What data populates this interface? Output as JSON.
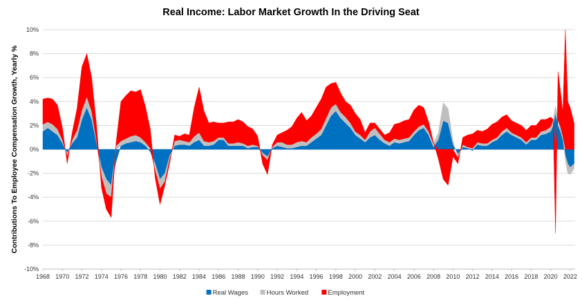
{
  "chart_data": {
    "type": "area",
    "title": "Real Income: Labor Market Growth In the Driving Seat",
    "ylabel": "Contributions To  Employee Compensation Growth, Yearly %",
    "xlabel": "",
    "stacked": true,
    "ylim": [
      -10,
      10
    ],
    "xlim": [
      1968,
      2022.5
    ],
    "yticks": [
      -10,
      -8,
      -6,
      -4,
      -2,
      0,
      2,
      4,
      6,
      8,
      10
    ],
    "ytick_labels": [
      "-10%",
      "-8%",
      "-6%",
      "-4%",
      "-2%",
      "0%",
      "2%",
      "4%",
      "6%",
      "8%",
      "10%"
    ],
    "xticks": [
      1968,
      1970,
      1972,
      1974,
      1976,
      1978,
      1980,
      1982,
      1984,
      1986,
      1988,
      1990,
      1992,
      1994,
      1996,
      1998,
      2000,
      2002,
      2004,
      2006,
      2008,
      2010,
      2012,
      2014,
      2016,
      2018,
      2020,
      2022
    ],
    "xtick_labels": [
      "1968",
      "1970",
      "1972",
      "1974",
      "1976",
      "1978",
      "1980",
      "1982",
      "1984",
      "1986",
      "1988",
      "1990",
      "1992",
      "1994",
      "1996",
      "1998",
      "2000",
      "2002",
      "2004",
      "2006",
      "2008",
      "2010",
      "2012",
      "2014",
      "2016",
      "2018",
      "2020",
      "2022"
    ],
    "grid": true,
    "legend_position": "bottom",
    "x": [
      1968.0,
      1968.5,
      1969.0,
      1969.5,
      1970.0,
      1970.5,
      1971.0,
      1971.5,
      1972.0,
      1972.5,
      1973.0,
      1973.5,
      1974.0,
      1974.5,
      1975.0,
      1975.5,
      1976.0,
      1976.5,
      1977.0,
      1977.5,
      1978.0,
      1978.5,
      1979.0,
      1979.5,
      1980.0,
      1980.5,
      1981.0,
      1981.5,
      1982.0,
      1982.5,
      1983.0,
      1983.5,
      1984.0,
      1984.5,
      1985.0,
      1985.5,
      1986.0,
      1986.5,
      1987.0,
      1987.5,
      1988.0,
      1988.5,
      1989.0,
      1989.5,
      1990.0,
      1990.5,
      1991.0,
      1991.5,
      1992.0,
      1992.5,
      1993.0,
      1993.5,
      1994.0,
      1994.5,
      1995.0,
      1995.5,
      1996.0,
      1996.5,
      1997.0,
      1997.5,
      1998.0,
      1998.5,
      1999.0,
      1999.5,
      2000.0,
      2000.5,
      2001.0,
      2001.5,
      2002.0,
      2002.5,
      2003.0,
      2003.5,
      2004.0,
      2004.5,
      2005.0,
      2005.5,
      2006.0,
      2006.5,
      2007.0,
      2007.5,
      2008.0,
      2008.5,
      2009.0,
      2009.5,
      2010.0,
      2010.5,
      2011.0,
      2011.5,
      2012.0,
      2012.5,
      2013.0,
      2013.5,
      2014.0,
      2014.5,
      2015.0,
      2015.5,
      2016.0,
      2016.5,
      2017.0,
      2017.5,
      2018.0,
      2018.5,
      2019.0,
      2019.5,
      2020.0,
      2020.25,
      2020.5,
      2020.75,
      2021.0,
      2021.25,
      2021.5,
      2021.75,
      2022.0,
      2022.4
    ],
    "series": [
      {
        "name": "Real Wages",
        "color": "#0070c0",
        "values": [
          1.5,
          1.8,
          1.5,
          1.2,
          0.5,
          -0.3,
          0.5,
          1.0,
          2.5,
          3.5,
          2.5,
          0.5,
          -1.5,
          -2.5,
          -3.0,
          -1.0,
          0.3,
          0.5,
          0.6,
          0.7,
          0.6,
          0.3,
          -0.2,
          -1.2,
          -2.5,
          -2.0,
          -0.5,
          0.3,
          0.4,
          0.4,
          0.3,
          0.6,
          0.8,
          0.3,
          0.3,
          0.4,
          0.8,
          0.8,
          0.3,
          0.3,
          0.3,
          0.3,
          0.1,
          0.2,
          0.2,
          -0.3,
          -0.6,
          0.1,
          0.3,
          0.2,
          0.1,
          0.1,
          0.2,
          0.3,
          0.3,
          0.6,
          0.9,
          1.2,
          2.0,
          2.8,
          3.2,
          2.6,
          2.2,
          1.8,
          1.2,
          0.9,
          0.6,
          1.0,
          1.2,
          0.8,
          0.5,
          0.3,
          0.6,
          0.5,
          0.6,
          0.7,
          1.2,
          1.6,
          1.8,
          1.2,
          0.2,
          0.8,
          2.4,
          2.2,
          0.4,
          -0.4,
          0.2,
          0.1,
          -0.1,
          0.4,
          0.3,
          0.3,
          0.6,
          0.8,
          1.2,
          1.5,
          1.2,
          1.0,
          0.8,
          0.4,
          0.8,
          0.8,
          1.2,
          1.3,
          1.5,
          2.0,
          3.0,
          2.0,
          1.5,
          0.8,
          -0.5,
          -1.2,
          -1.5,
          -1.2
        ]
      },
      {
        "name": "Hours Worked",
        "color": "#bfbfbf",
        "values": [
          0.6,
          0.5,
          0.6,
          0.5,
          0.3,
          -0.3,
          0.3,
          0.6,
          0.8,
          0.9,
          0.7,
          0.2,
          -0.8,
          -1.2,
          -1.0,
          0.3,
          0.4,
          0.4,
          0.5,
          0.5,
          0.4,
          0.3,
          0.1,
          -0.6,
          -0.8,
          -0.7,
          -0.3,
          0.4,
          0.4,
          0.3,
          0.3,
          0.5,
          0.6,
          0.4,
          0.3,
          0.3,
          0.2,
          0.2,
          0.2,
          0.2,
          0.3,
          0.2,
          0.2,
          0.2,
          0.1,
          -0.2,
          -0.3,
          0.1,
          0.3,
          0.4,
          0.3,
          0.3,
          0.4,
          0.4,
          0.3,
          0.4,
          0.4,
          0.5,
          0.6,
          0.7,
          0.6,
          0.5,
          0.5,
          0.4,
          0.3,
          0.3,
          0.2,
          0.5,
          0.6,
          0.5,
          0.3,
          0.3,
          0.3,
          0.3,
          0.3,
          0.3,
          0.3,
          0.3,
          0.3,
          0.3,
          0.3,
          0.6,
          1.5,
          1.2,
          0.3,
          -0.3,
          0.2,
          0.1,
          0.1,
          0.2,
          0.2,
          0.2,
          0.2,
          0.2,
          0.3,
          0.3,
          0.2,
          0.2,
          0.2,
          0.2,
          0.2,
          0.2,
          0.3,
          0.3,
          0.4,
          0.5,
          0.6,
          0.5,
          0.4,
          0.3,
          -0.4,
          -0.8,
          -0.6,
          -0.4
        ]
      },
      {
        "name": "Employment",
        "color": "#ff0000",
        "values": [
          2.1,
          2.0,
          2.1,
          2.0,
          1.0,
          -0.6,
          0.6,
          1.8,
          3.6,
          3.6,
          2.8,
          1.3,
          -0.9,
          -1.3,
          -1.7,
          0.3,
          3.3,
          3.6,
          3.8,
          3.6,
          4.0,
          3.0,
          1.6,
          -0.6,
          -1.3,
          -0.3,
          -0.3,
          0.5,
          0.3,
          0.6,
          0.6,
          2.4,
          3.8,
          2.5,
          1.6,
          1.6,
          1.2,
          1.2,
          1.8,
          1.8,
          1.9,
          1.8,
          1.6,
          1.3,
          0.8,
          -0.7,
          -1.2,
          0.2,
          0.6,
          0.8,
          1.2,
          1.5,
          2.0,
          2.4,
          1.8,
          1.8,
          2.2,
          2.5,
          2.6,
          2.0,
          1.8,
          1.6,
          1.3,
          1.5,
          1.5,
          1.3,
          0.6,
          0.7,
          0.4,
          0.4,
          0.4,
          0.8,
          1.2,
          1.4,
          1.5,
          1.5,
          1.8,
          1.8,
          1.4,
          0.8,
          0.1,
          -0.8,
          -2.5,
          -3.0,
          -0.6,
          -0.5,
          0.6,
          1.0,
          1.2,
          1.0,
          1.0,
          1.2,
          1.3,
          1.3,
          1.2,
          1.1,
          1.0,
          1.0,
          1.0,
          1.0,
          1.0,
          1.0,
          1.0,
          0.9,
          0.8,
          0.0,
          -7.0,
          4.0,
          3.0,
          2.0,
          10.0,
          4.0,
          3.5,
          2.2
        ]
      }
    ]
  }
}
